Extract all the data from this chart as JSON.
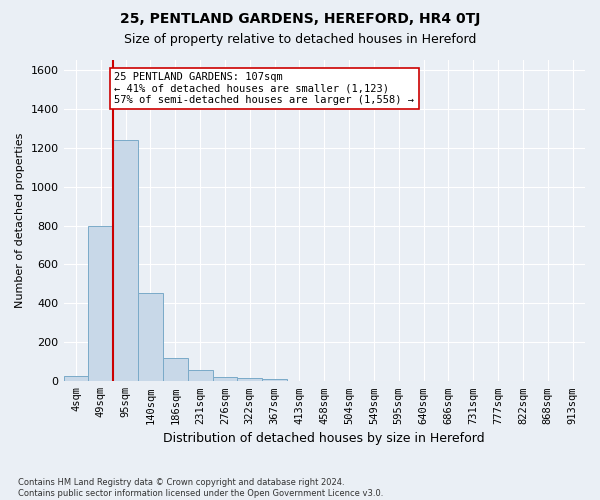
{
  "title1": "25, PENTLAND GARDENS, HEREFORD, HR4 0TJ",
  "title2": "Size of property relative to detached houses in Hereford",
  "xlabel": "Distribution of detached houses by size in Hereford",
  "ylabel": "Number of detached properties",
  "footer": "Contains HM Land Registry data © Crown copyright and database right 2024.\nContains public sector information licensed under the Open Government Licence v3.0.",
  "bin_labels": [
    "4sqm",
    "49sqm",
    "95sqm",
    "140sqm",
    "186sqm",
    "231sqm",
    "276sqm",
    "322sqm",
    "367sqm",
    "413sqm",
    "458sqm",
    "504sqm",
    "549sqm",
    "595sqm",
    "640sqm",
    "686sqm",
    "731sqm",
    "777sqm",
    "822sqm",
    "868sqm",
    "913sqm"
  ],
  "bar_values": [
    25,
    800,
    1240,
    455,
    120,
    58,
    22,
    18,
    12,
    0,
    0,
    0,
    0,
    0,
    0,
    0,
    0,
    0,
    0,
    0,
    0
  ],
  "bar_color": "#c8d8e8",
  "bar_edge_color": "#7aaac8",
  "vline_x_index": 2,
  "vline_color": "#cc0000",
  "annotation_text": "25 PENTLAND GARDENS: 107sqm\n← 41% of detached houses are smaller (1,123)\n57% of semi-detached houses are larger (1,558) →",
  "annotation_box_color": "#ffffff",
  "annotation_box_edge": "#cc0000",
  "ylim": [
    0,
    1650
  ],
  "yticks": [
    0,
    200,
    400,
    600,
    800,
    1000,
    1200,
    1400,
    1600
  ],
  "bg_color": "#eaeff5",
  "plot_bg_color": "#eaeff5",
  "grid_color": "#ffffff"
}
